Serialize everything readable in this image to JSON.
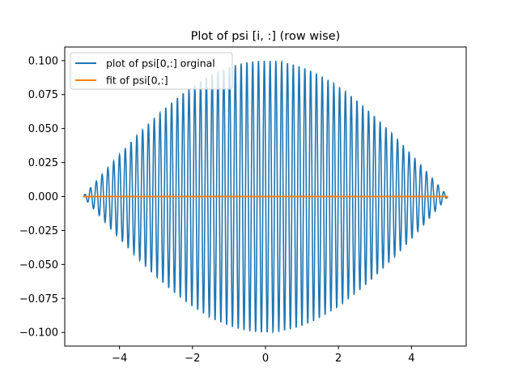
{
  "chart_data": {
    "type": "line",
    "title": "Plot of psi [i, :] (row wise)",
    "xlabel": "",
    "ylabel": "",
    "xlim": [
      -5.5,
      5.5
    ],
    "ylim": [
      -0.11,
      0.11
    ],
    "xticks": [
      -4,
      -2,
      0,
      2,
      4
    ],
    "xtick_labels": [
      "−4",
      "−2",
      "0",
      "2",
      "4"
    ],
    "yticks": [
      -0.1,
      -0.075,
      -0.05,
      -0.025,
      0.0,
      0.025,
      0.05,
      0.075,
      0.1
    ],
    "ytick_labels": [
      "−0.100",
      "−0.075",
      "−0.050",
      "−0.025",
      "0.000",
      "0.025",
      "0.050",
      "0.075",
      "0.100"
    ],
    "grid": false,
    "legend_position": "upper-left",
    "series": [
      {
        "name": "plot of psi[0,:] orginal",
        "color": "#1f77b4",
        "description": "oscillation with cosine envelope",
        "x_range": [
          -5,
          5
        ],
        "amplitude": 0.1,
        "cycles_per_unit": 6.3,
        "samples": 2400
      },
      {
        "name": "fit of psi[0,:]",
        "color": "#ff7f0e",
        "x": [
          -5,
          5
        ],
        "y": [
          0.0,
          0.0
        ]
      }
    ]
  }
}
